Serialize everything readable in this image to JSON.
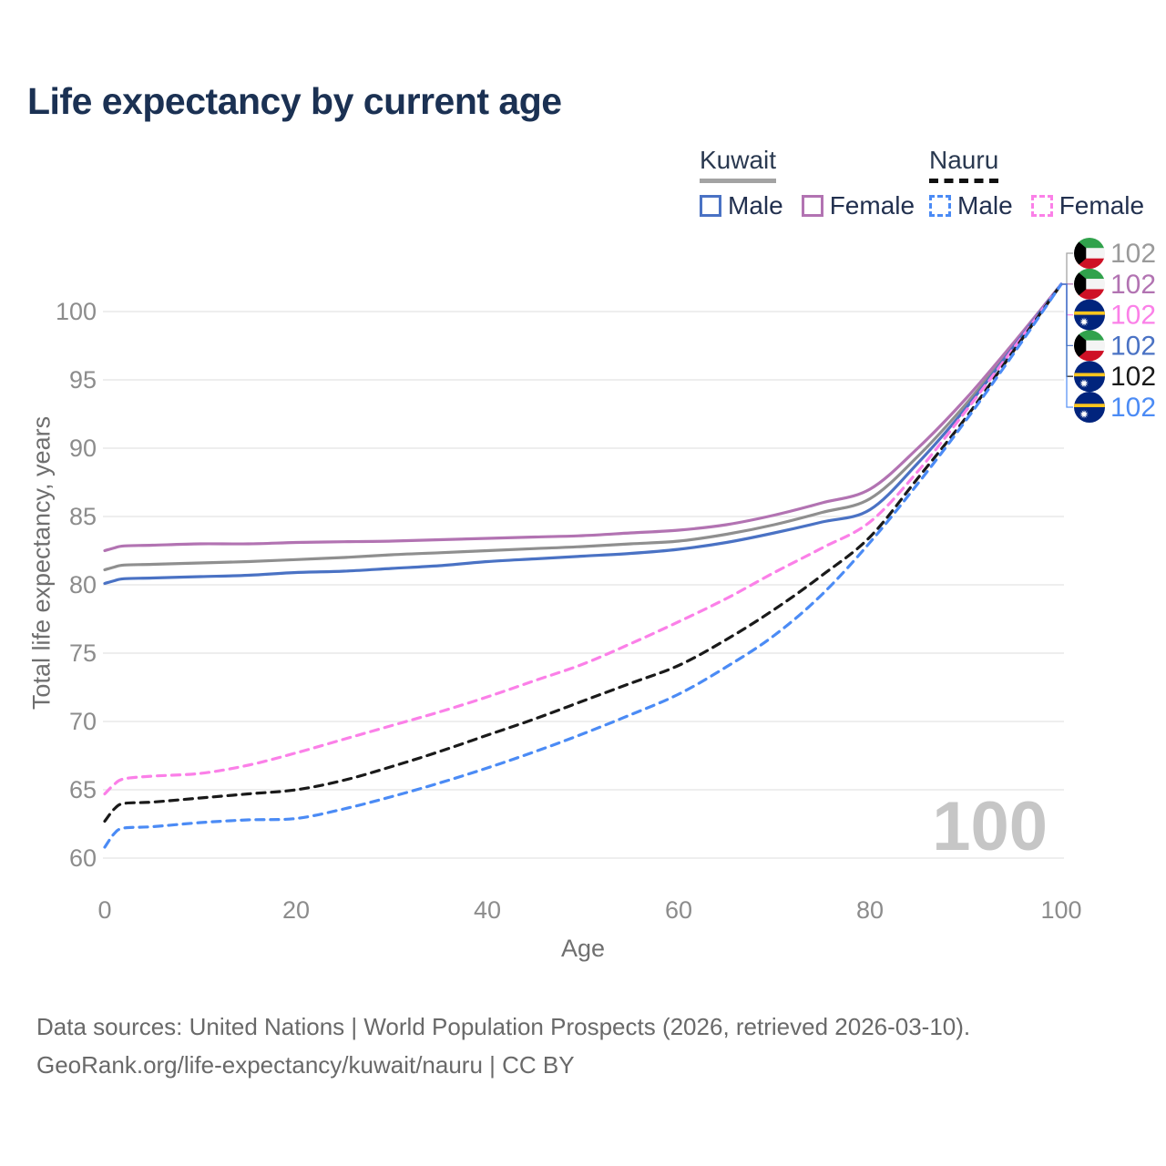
{
  "title": "Life expectancy by current age",
  "legend": {
    "groups": [
      {
        "name": "Kuwait",
        "underline": "solid",
        "items": [
          {
            "label": "Male",
            "color": "#4a72c4",
            "dash": "solid"
          },
          {
            "label": "Female",
            "color": "#b273b2",
            "dash": "solid"
          }
        ]
      },
      {
        "name": "Nauru",
        "underline": "dashed",
        "items": [
          {
            "label": "Male",
            "color": "#4b8bf5",
            "dash": "dashed"
          },
          {
            "label": "Female",
            "color": "#fb80e8",
            "dash": "dashed"
          }
        ]
      }
    ]
  },
  "watermark": {
    "text": "100"
  },
  "footer": {
    "line1": "Data sources: United Nations | World Population Prospects (2026, retrieved 2026-03-10).",
    "line2": "GeoRank.org/life-expectancy/kuwait/nauru | CC BY"
  },
  "chart_data": {
    "type": "line",
    "title": "Life expectancy by current age",
    "xlabel": "Age",
    "ylabel": "Total life expectancy, years",
    "xlim": [
      0,
      100
    ],
    "ylim": [
      58.5,
      103.5
    ],
    "x_ticks": [
      0,
      20,
      40,
      60,
      80,
      100
    ],
    "y_ticks": [
      60,
      65,
      70,
      75,
      80,
      85,
      90,
      95,
      100
    ],
    "grid": "horizontal",
    "legend_position": "top-right",
    "x": [
      0,
      1,
      2,
      5,
      10,
      15,
      20,
      25,
      30,
      35,
      40,
      45,
      50,
      55,
      60,
      65,
      70,
      75,
      80,
      85,
      90,
      95,
      100
    ],
    "series": [
      {
        "id": "kuwait_both",
        "country": "Kuwait",
        "sex": "Both",
        "color": "#8f8f8f",
        "dash": "solid",
        "values": [
          81.1,
          81.3,
          81.45,
          81.5,
          81.6,
          81.7,
          81.85,
          82.0,
          82.2,
          82.35,
          82.5,
          82.65,
          82.8,
          83.0,
          83.2,
          83.7,
          84.4,
          85.3,
          86.3,
          89.4,
          93.2,
          97.5,
          102
        ]
      },
      {
        "id": "kuwait_female",
        "country": "Kuwait",
        "sex": "Female",
        "color": "#b273b2",
        "dash": "solid",
        "values": [
          82.5,
          82.7,
          82.85,
          82.9,
          83.0,
          83.0,
          83.1,
          83.15,
          83.2,
          83.3,
          83.4,
          83.5,
          83.6,
          83.8,
          84.0,
          84.4,
          85.1,
          86.0,
          87.0,
          90.0,
          93.6,
          97.7,
          102
        ]
      },
      {
        "id": "kuwait_male",
        "country": "Kuwait",
        "sex": "Male",
        "color": "#4a72c4",
        "dash": "solid",
        "values": [
          80.1,
          80.3,
          80.45,
          80.5,
          80.6,
          80.7,
          80.9,
          81.0,
          81.2,
          81.4,
          81.7,
          81.9,
          82.1,
          82.3,
          82.6,
          83.1,
          83.8,
          84.6,
          85.5,
          88.9,
          92.9,
          97.4,
          102
        ]
      },
      {
        "id": "nauru_female",
        "country": "Nauru",
        "sex": "Female",
        "color": "#fb80e8",
        "dash": "dashed",
        "values": [
          64.7,
          65.4,
          65.8,
          66.0,
          66.2,
          66.8,
          67.7,
          68.7,
          69.7,
          70.7,
          71.8,
          73.0,
          74.2,
          75.7,
          77.3,
          79.0,
          80.9,
          82.7,
          84.6,
          88.3,
          92.7,
          97.3,
          102
        ]
      },
      {
        "id": "nauru_both",
        "country": "Nauru",
        "sex": "Both",
        "color": "#1a1a1a",
        "dash": "dashed",
        "values": [
          62.7,
          63.6,
          64.0,
          64.1,
          64.4,
          64.7,
          65.0,
          65.7,
          66.7,
          67.8,
          69.0,
          70.2,
          71.5,
          72.8,
          74.1,
          76.0,
          78.2,
          80.7,
          83.5,
          87.8,
          92.2,
          97.1,
          102
        ]
      },
      {
        "id": "nauru_male",
        "country": "Nauru",
        "sex": "Male",
        "color": "#4b8bf5",
        "dash": "dashed",
        "values": [
          60.8,
          61.8,
          62.2,
          62.3,
          62.6,
          62.8,
          62.9,
          63.6,
          64.5,
          65.5,
          66.6,
          67.8,
          69.1,
          70.5,
          72.0,
          74.0,
          76.3,
          79.3,
          83.1,
          87.4,
          92.0,
          96.9,
          102
        ]
      }
    ],
    "end_labels": [
      {
        "flag": "kuwait",
        "value": "102",
        "color": "#9a9a9a",
        "series": "kuwait_both"
      },
      {
        "flag": "kuwait",
        "value": "102",
        "color": "#b273b2",
        "series": "kuwait_female"
      },
      {
        "flag": "nauru",
        "value": "102",
        "color": "#fb80e8",
        "series": "nauru_female"
      },
      {
        "flag": "kuwait",
        "value": "102",
        "color": "#4a72c4",
        "series": "kuwait_male"
      },
      {
        "flag": "nauru",
        "value": "102",
        "color": "#1a1a1a",
        "series": "nauru_both"
      },
      {
        "flag": "nauru",
        "value": "102",
        "color": "#4b8bf5",
        "series": "nauru_male"
      }
    ]
  }
}
